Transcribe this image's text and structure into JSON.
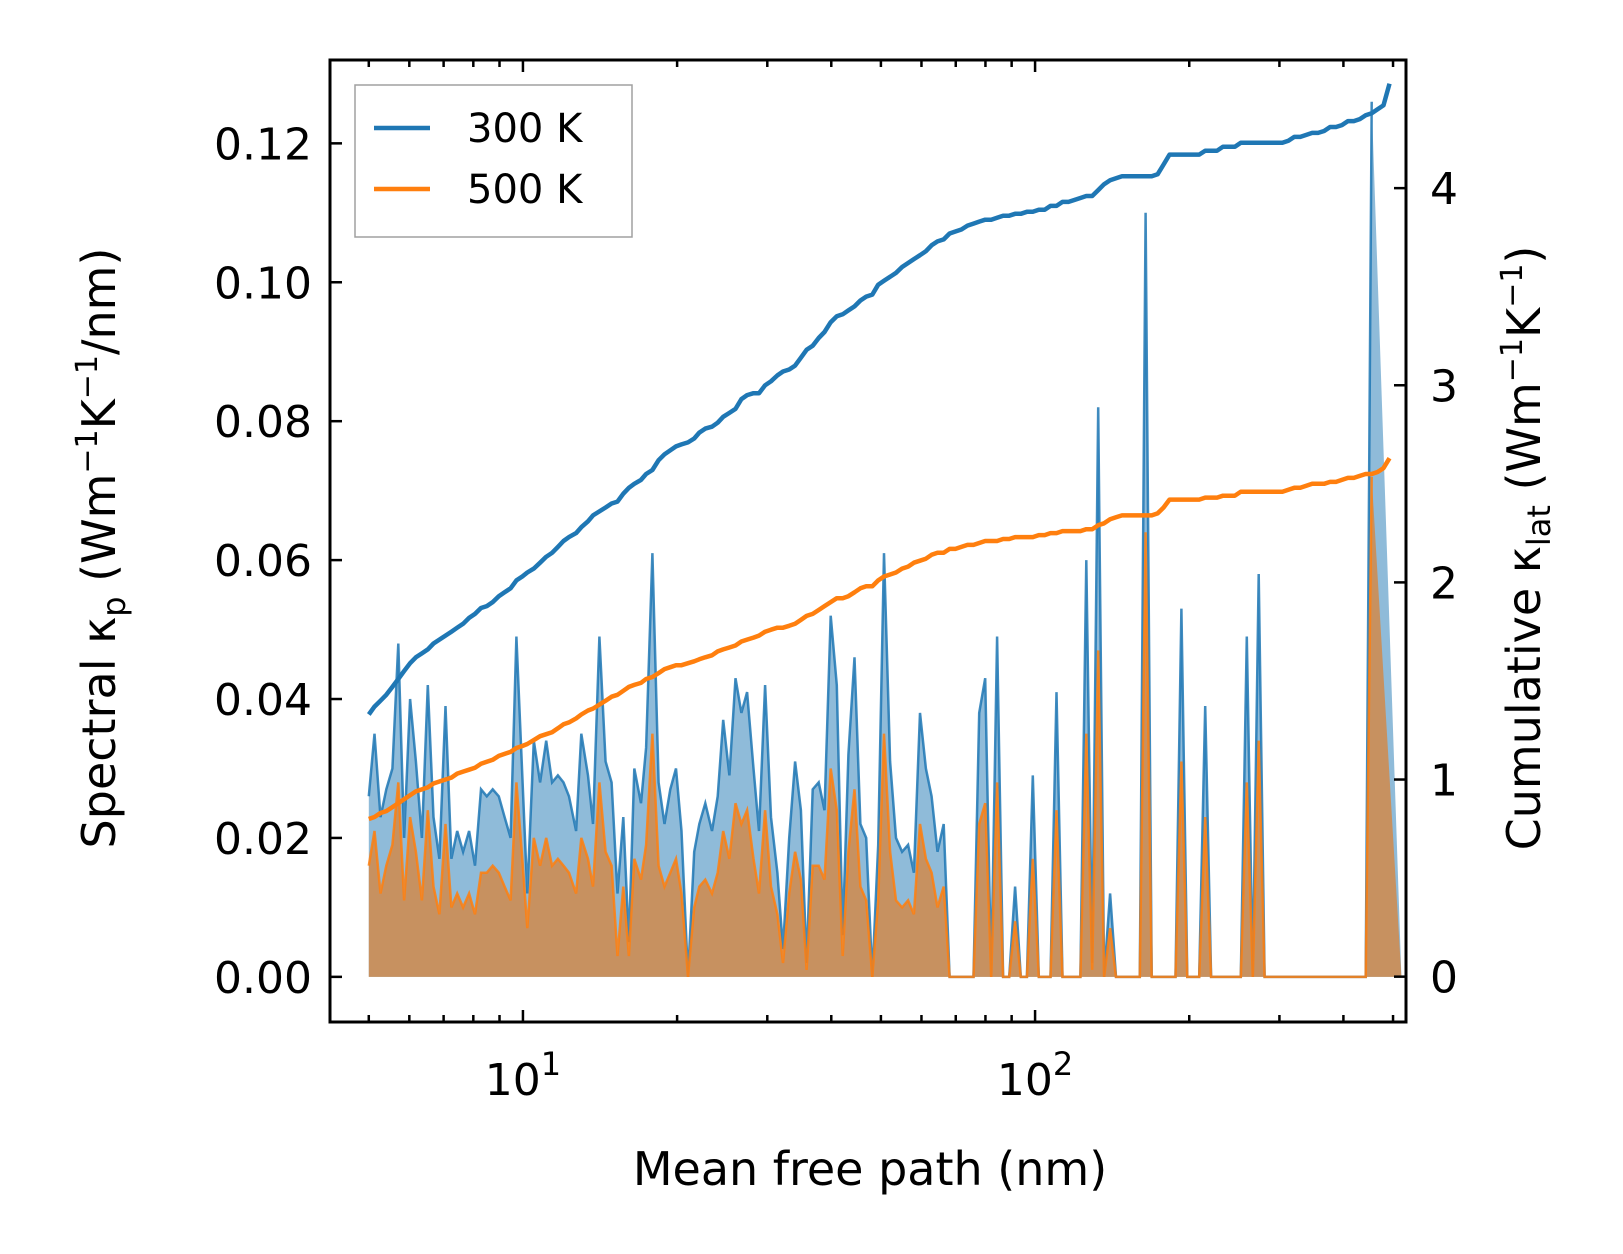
{
  "chart_data": {
    "type": "line",
    "xlabel": "Mean free path (nm)",
    "ylabel_left": {
      "main": "Spectral κ",
      "sub": "p",
      "units_open": " (Wm",
      "sup1": "−1",
      "mid": "K",
      "sup2": "−1",
      "units_close": "/nm)"
    },
    "ylabel_right": {
      "main": "Cumulative κ",
      "sub": "lat",
      "units_open": " (Wm",
      "sup1": "−1",
      "mid": "K",
      "sup2": "−1",
      "units_close": ")"
    },
    "xscale": "log",
    "xlim": [
      4.2,
      530
    ],
    "ylim_left": [
      -0.0065,
      0.132
    ],
    "ylim_right": [
      -0.23,
      4.65
    ],
    "x_ticks": [
      {
        "base": "10",
        "exp": "1",
        "value": 10
      },
      {
        "base": "10",
        "exp": "2",
        "value": 100
      }
    ],
    "y_ticks_left": [
      "0.00",
      "0.02",
      "0.04",
      "0.06",
      "0.08",
      "0.10",
      "0.12"
    ],
    "y_ticks_right": [
      "0",
      "1",
      "2",
      "3",
      "4"
    ],
    "legend": {
      "position": "top-left",
      "entries": [
        "300 K",
        "500 K"
      ]
    },
    "colors": {
      "300K": "#1f77b4",
      "500K": "#ff7f0e",
      "fill300": "#1f77b4",
      "fill500": "#d18a4a"
    },
    "x": [
      5.0,
      5.13,
      5.27,
      5.41,
      5.56,
      5.71,
      5.86,
      6.02,
      6.18,
      6.35,
      6.52,
      6.69,
      6.87,
      7.06,
      7.25,
      7.44,
      7.64,
      7.85,
      8.06,
      8.28,
      8.5,
      8.73,
      8.97,
      9.21,
      9.46,
      9.71,
      9.97,
      10.2,
      10.5,
      10.8,
      11.1,
      11.4,
      11.7,
      12.0,
      12.3,
      12.7,
      13.0,
      13.4,
      13.7,
      14.1,
      14.5,
      14.9,
      15.3,
      15.7,
      16.1,
      16.5,
      17.0,
      17.4,
      17.9,
      18.4,
      18.9,
      19.4,
      19.9,
      20.4,
      21.0,
      21.6,
      22.1,
      22.7,
      23.4,
      24.0,
      24.6,
      25.3,
      26.0,
      26.7,
      27.4,
      28.2,
      28.9,
      29.7,
      30.5,
      31.4,
      32.2,
      33.1,
      34.0,
      34.9,
      35.8,
      36.8,
      37.8,
      38.8,
      39.9,
      41.0,
      42.1,
      43.2,
      44.4,
      45.6,
      46.8,
      48.1,
      49.4,
      50.7,
      52.1,
      53.5,
      55.0,
      56.5,
      58.0,
      59.6,
      61.2,
      62.8,
      64.5,
      66.3,
      68.1,
      69.9,
      71.8,
      73.8,
      75.8,
      77.8,
      79.9,
      82.1,
      84.3,
      86.6,
      89.0,
      91.4,
      93.8,
      96.4,
      99.0,
      101.7,
      104.4,
      107.2,
      110.1,
      113.1,
      116.2,
      119.3,
      122.6,
      125.9,
      129.3,
      132.8,
      136.4,
      140.1,
      143.9,
      147.8,
      151.8,
      155.9,
      160.1,
      164.4,
      168.9,
      173.5,
      178.2,
      183.0,
      188.0,
      193.1,
      198.3,
      203.7,
      209.2,
      214.9,
      220.7,
      226.7,
      232.8,
      239.1,
      245.6,
      252.2,
      259.1,
      266.1,
      273.3,
      280.7,
      288.3,
      296.1,
      304.1,
      312.4,
      320.8,
      329.5,
      338.5,
      347.6,
      357.0,
      366.7,
      376.7,
      386.9,
      397.3,
      408.1,
      419.2,
      430.5,
      442.2,
      454.2,
      466.5,
      479.1,
      492.1,
      505.4,
      519.1
    ],
    "series": [
      {
        "name": "300 K",
        "cumulative": [
          1.33,
          1.37,
          1.4,
          1.43,
          1.47,
          1.51,
          1.55,
          1.59,
          1.62,
          1.64,
          1.66,
          1.69,
          1.71,
          1.73,
          1.75,
          1.77,
          1.79,
          1.82,
          1.84,
          1.87,
          1.88,
          1.9,
          1.93,
          1.95,
          1.97,
          2.01,
          2.03,
          2.05,
          2.07,
          2.1,
          2.13,
          2.15,
          2.18,
          2.21,
          2.23,
          2.25,
          2.28,
          2.31,
          2.34,
          2.36,
          2.38,
          2.4,
          2.41,
          2.45,
          2.48,
          2.5,
          2.52,
          2.55,
          2.57,
          2.62,
          2.65,
          2.67,
          2.69,
          2.7,
          2.71,
          2.73,
          2.76,
          2.78,
          2.79,
          2.81,
          2.84,
          2.86,
          2.88,
          2.93,
          2.95,
          2.96,
          2.96,
          3.0,
          3.02,
          3.05,
          3.07,
          3.08,
          3.1,
          3.14,
          3.18,
          3.2,
          3.24,
          3.27,
          3.32,
          3.35,
          3.36,
          3.38,
          3.4,
          3.43,
          3.45,
          3.46,
          3.51,
          3.53,
          3.55,
          3.57,
          3.6,
          3.62,
          3.64,
          3.66,
          3.68,
          3.71,
          3.73,
          3.74,
          3.77,
          3.78,
          3.79,
          3.81,
          3.82,
          3.83,
          3.84,
          3.84,
          3.85,
          3.86,
          3.86,
          3.87,
          3.87,
          3.88,
          3.88,
          3.89,
          3.89,
          3.91,
          3.91,
          3.93,
          3.93,
          3.94,
          3.95,
          3.96,
          3.96,
          3.99,
          4.02,
          4.04,
          4.05,
          4.06,
          4.06,
          4.06,
          4.06,
          4.06,
          4.06,
          4.07,
          4.12,
          4.17,
          4.17,
          4.17,
          4.17,
          4.17,
          4.17,
          4.19,
          4.19,
          4.19,
          4.21,
          4.21,
          4.21,
          4.23,
          4.23,
          4.23,
          4.23,
          4.23,
          4.23,
          4.23,
          4.23,
          4.24,
          4.26,
          4.26,
          4.27,
          4.28,
          4.28,
          4.29,
          4.31,
          4.31,
          4.32,
          4.34,
          4.34,
          4.35,
          4.37,
          4.38,
          4.4,
          4.42,
          4.53
        ],
        "spectral": [
          0.026,
          0.035,
          0.023,
          0.027,
          0.03,
          0.048,
          0.02,
          0.04,
          0.031,
          0.02,
          0.042,
          0.023,
          0.017,
          0.039,
          0.017,
          0.021,
          0.018,
          0.021,
          0.016,
          0.027,
          0.026,
          0.027,
          0.026,
          0.023,
          0.02,
          0.049,
          0.029,
          0.012,
          0.034,
          0.028,
          0.034,
          0.028,
          0.029,
          0.028,
          0.026,
          0.021,
          0.035,
          0.029,
          0.022,
          0.049,
          0.031,
          0.028,
          0.012,
          0.023,
          0.005,
          0.03,
          0.025,
          0.033,
          0.061,
          0.028,
          0.022,
          0.027,
          0.03,
          0.021,
          0.0,
          0.018,
          0.022,
          0.025,
          0.021,
          0.026,
          0.037,
          0.029,
          0.043,
          0.038,
          0.041,
          0.03,
          0.021,
          0.042,
          0.023,
          0.015,
          0.004,
          0.02,
          0.031,
          0.024,
          0.002,
          0.027,
          0.028,
          0.024,
          0.052,
          0.042,
          0.006,
          0.032,
          0.046,
          0.022,
          0.02,
          0.0,
          0.019,
          0.061,
          0.031,
          0.02,
          0.018,
          0.019,
          0.015,
          0.038,
          0.03,
          0.026,
          0.018,
          0.022,
          0.0,
          0.0,
          0.0,
          0.0,
          0.0,
          0.038,
          0.043,
          0.0,
          0.049,
          0.0,
          0.0,
          0.013,
          0.0,
          0.0,
          0.029,
          0.0,
          0.0,
          0.0,
          0.041,
          0.0,
          0.0,
          0.0,
          0.0,
          0.06,
          0.002,
          0.082,
          0.0,
          0.012,
          0.0,
          0.0,
          0.0,
          0.0,
          0.0,
          0.11,
          0.0,
          0.0,
          0.0,
          0.0,
          0.0,
          0.053,
          0.0,
          0.0,
          0.0,
          0.039,
          0.0,
          0.0,
          0.0,
          0.0,
          0.0,
          0.0,
          0.049,
          0.0,
          0.058,
          0.0,
          0.0,
          0.0,
          0.0,
          0.0,
          0.0,
          0.0,
          0.0,
          0.0,
          0.0,
          0.0,
          0.0,
          0.0,
          0.0,
          0.0,
          0.0,
          0.0,
          0.0,
          0.126
        ]
      },
      {
        "name": "500 K",
        "cumulative": [
          0.8,
          0.81,
          0.83,
          0.84,
          0.86,
          0.88,
          0.9,
          0.92,
          0.94,
          0.95,
          0.96,
          0.98,
          0.99,
          1.0,
          1.01,
          1.03,
          1.04,
          1.05,
          1.06,
          1.08,
          1.09,
          1.1,
          1.12,
          1.13,
          1.14,
          1.16,
          1.17,
          1.18,
          1.2,
          1.22,
          1.23,
          1.24,
          1.26,
          1.28,
          1.29,
          1.31,
          1.33,
          1.35,
          1.36,
          1.38,
          1.4,
          1.42,
          1.43,
          1.45,
          1.47,
          1.48,
          1.49,
          1.51,
          1.52,
          1.54,
          1.56,
          1.57,
          1.58,
          1.58,
          1.59,
          1.6,
          1.61,
          1.62,
          1.63,
          1.65,
          1.66,
          1.67,
          1.68,
          1.7,
          1.71,
          1.72,
          1.73,
          1.75,
          1.76,
          1.77,
          1.77,
          1.78,
          1.79,
          1.81,
          1.83,
          1.84,
          1.86,
          1.88,
          1.9,
          1.92,
          1.92,
          1.93,
          1.95,
          1.97,
          1.98,
          1.98,
          2.01,
          2.03,
          2.04,
          2.05,
          2.07,
          2.08,
          2.1,
          2.11,
          2.12,
          2.14,
          2.15,
          2.15,
          2.17,
          2.17,
          2.18,
          2.19,
          2.19,
          2.2,
          2.21,
          2.21,
          2.21,
          2.22,
          2.22,
          2.23,
          2.23,
          2.23,
          2.23,
          2.24,
          2.24,
          2.25,
          2.25,
          2.26,
          2.26,
          2.26,
          2.26,
          2.27,
          2.27,
          2.29,
          2.3,
          2.32,
          2.33,
          2.34,
          2.34,
          2.34,
          2.34,
          2.34,
          2.34,
          2.35,
          2.38,
          2.42,
          2.42,
          2.42,
          2.42,
          2.42,
          2.42,
          2.43,
          2.43,
          2.43,
          2.44,
          2.44,
          2.44,
          2.46,
          2.46,
          2.46,
          2.46,
          2.46,
          2.46,
          2.46,
          2.46,
          2.47,
          2.48,
          2.48,
          2.49,
          2.5,
          2.5,
          2.5,
          2.51,
          2.51,
          2.52,
          2.53,
          2.53,
          2.54,
          2.55,
          2.55,
          2.56,
          2.58,
          2.63
        ],
        "spectral": [
          0.016,
          0.021,
          0.012,
          0.016,
          0.019,
          0.028,
          0.011,
          0.023,
          0.018,
          0.011,
          0.024,
          0.013,
          0.009,
          0.022,
          0.01,
          0.012,
          0.01,
          0.012,
          0.009,
          0.015,
          0.015,
          0.016,
          0.015,
          0.013,
          0.011,
          0.028,
          0.017,
          0.007,
          0.02,
          0.016,
          0.02,
          0.016,
          0.017,
          0.016,
          0.015,
          0.012,
          0.02,
          0.017,
          0.013,
          0.028,
          0.018,
          0.016,
          0.003,
          0.013,
          0.003,
          0.017,
          0.014,
          0.019,
          0.035,
          0.016,
          0.013,
          0.015,
          0.017,
          0.012,
          0.0,
          0.01,
          0.013,
          0.014,
          0.012,
          0.015,
          0.021,
          0.017,
          0.025,
          0.022,
          0.024,
          0.017,
          0.012,
          0.024,
          0.013,
          0.009,
          0.002,
          0.012,
          0.018,
          0.014,
          0.001,
          0.016,
          0.016,
          0.014,
          0.03,
          0.024,
          0.003,
          0.018,
          0.027,
          0.013,
          0.011,
          0.0,
          0.011,
          0.035,
          0.018,
          0.011,
          0.01,
          0.011,
          0.009,
          0.022,
          0.017,
          0.015,
          0.01,
          0.013,
          0.0,
          0.0,
          0.0,
          0.0,
          0.0,
          0.022,
          0.025,
          0.0,
          0.028,
          0.0,
          0.0,
          0.008,
          0.0,
          0.0,
          0.017,
          0.0,
          0.0,
          0.0,
          0.024,
          0.0,
          0.0,
          0.0,
          0.0,
          0.035,
          0.001,
          0.047,
          0.0,
          0.007,
          0.0,
          0.0,
          0.0,
          0.0,
          0.0,
          0.064,
          0.0,
          0.0,
          0.0,
          0.0,
          0.0,
          0.031,
          0.0,
          0.0,
          0.0,
          0.023,
          0.0,
          0.0,
          0.0,
          0.0,
          0.0,
          0.0,
          0.028,
          0.0,
          0.034,
          0.0,
          0.0,
          0.0,
          0.0,
          0.0,
          0.0,
          0.0,
          0.0,
          0.0,
          0.0,
          0.0,
          0.0,
          0.0,
          0.0,
          0.0,
          0.0,
          0.0,
          0.0,
          0.072
        ]
      }
    ]
  }
}
